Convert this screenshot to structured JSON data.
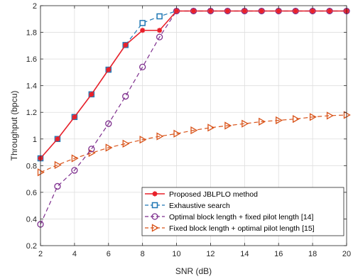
{
  "chart_data": {
    "type": "line",
    "xlabel": "SNR (dB)",
    "ylabel": "Throughput (bpcu)",
    "xlim": [
      2,
      20
    ],
    "ylim": [
      0.2,
      2
    ],
    "xticks": [
      2,
      4,
      6,
      8,
      10,
      12,
      14,
      16,
      18,
      20
    ],
    "yticks": [
      0.2,
      0.4,
      0.6,
      0.8,
      1,
      1.2,
      1.4,
      1.6,
      1.8,
      2
    ],
    "grid": true,
    "legend_position": "bottom-right",
    "series": [
      {
        "name": "Proposed JBLPLO method",
        "color": "#e8202a",
        "line": "solid",
        "marker": "asterisk",
        "x": [
          2,
          3,
          4,
          5,
          6,
          7,
          8,
          9,
          10,
          11,
          12,
          13,
          14,
          15,
          16,
          17,
          18,
          19,
          20
        ],
        "y": [
          0.855,
          1.0,
          1.165,
          1.335,
          1.52,
          1.705,
          1.815,
          1.815,
          1.96,
          1.96,
          1.96,
          1.96,
          1.96,
          1.96,
          1.96,
          1.96,
          1.96,
          1.96,
          1.96
        ]
      },
      {
        "name": "Exhaustive search",
        "color": "#1f77b4",
        "line": "dashed",
        "marker": "square",
        "x": [
          2,
          3,
          4,
          5,
          6,
          7,
          8,
          9,
          10,
          11,
          12,
          13,
          14,
          15,
          16,
          17,
          18,
          19,
          20
        ],
        "y": [
          0.855,
          1.0,
          1.165,
          1.335,
          1.52,
          1.705,
          1.87,
          1.92,
          1.96,
          1.96,
          1.96,
          1.96,
          1.96,
          1.96,
          1.96,
          1.96,
          1.96,
          1.96,
          1.96
        ]
      },
      {
        "name": "Optimal block length + fixed pilot length [14]",
        "color": "#7e2f8e",
        "line": "dashed",
        "marker": "circle",
        "x": [
          2,
          3,
          4,
          5,
          6,
          7,
          8,
          9,
          10,
          11,
          12,
          13,
          14,
          15,
          16,
          17,
          18,
          19,
          20
        ],
        "y": [
          0.36,
          0.645,
          0.765,
          0.925,
          1.115,
          1.32,
          1.54,
          1.765,
          1.96,
          1.96,
          1.96,
          1.96,
          1.96,
          1.96,
          1.96,
          1.96,
          1.96,
          1.96,
          1.96
        ]
      },
      {
        "name": "Fixed block length + optimal pilot length [15]",
        "color": "#d95319",
        "line": "dashed",
        "marker": "triangle-right",
        "x": [
          2,
          3,
          4,
          5,
          6,
          7,
          8,
          9,
          10,
          11,
          12,
          13,
          14,
          15,
          16,
          17,
          18,
          19,
          20
        ],
        "y": [
          0.75,
          0.805,
          0.855,
          0.895,
          0.935,
          0.965,
          0.995,
          1.02,
          1.04,
          1.065,
          1.085,
          1.1,
          1.115,
          1.13,
          1.14,
          1.15,
          1.165,
          1.175,
          1.18
        ]
      }
    ]
  }
}
